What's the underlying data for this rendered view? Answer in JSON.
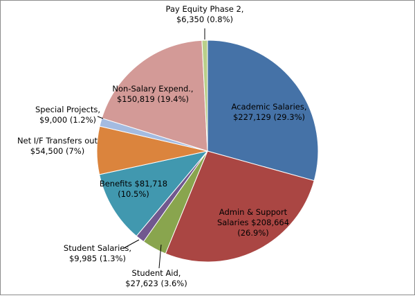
{
  "chart_data": {
    "type": "pie",
    "title": "",
    "start_angle_deg": 0,
    "direction": "clockwise",
    "legend": "none",
    "slices": [
      {
        "label": "Academic Salaries",
        "amount": "$227,129",
        "percent": "29.3%",
        "value": 29.3,
        "color": "#4572a7",
        "label_lines": [
          "Academic Salaries,",
          "$227,129 (29.3%)"
        ]
      },
      {
        "label": "Admin & Support Salaries",
        "amount": "$208,664",
        "percent": "26.9%",
        "value": 26.9,
        "color": "#aa4643",
        "label_lines": [
          "Admin & Support",
          "Salaries $208,664",
          "(26.9%)"
        ]
      },
      {
        "label": "Student Aid",
        "amount": "$27,623",
        "percent": "3.6%",
        "value": 3.6,
        "color": "#89a54e",
        "label_lines": [
          "Student Aid,",
          "$27,623 (3.6%)"
        ]
      },
      {
        "label": "Student Salaries",
        "amount": "$9,985",
        "percent": "1.3%",
        "value": 1.3,
        "color": "#71588f",
        "label_lines": [
          "Student Salaries,",
          "$9,985 (1.3%)"
        ]
      },
      {
        "label": "Benefits",
        "amount": "$81,718",
        "percent": "10.5%",
        "value": 10.5,
        "color": "#4198af",
        "label_lines": [
          "Benefits $81,718",
          "(10.5%)"
        ]
      },
      {
        "label": "Net I/F Transfers out",
        "amount": "$54,500",
        "percent": "7%",
        "value": 7,
        "color": "#db843d",
        "label_lines": [
          "Net  I/F Transfers out",
          "$54,500 (7%)"
        ]
      },
      {
        "label": "Special Projects",
        "amount": "$9,000",
        "percent": "1.2%",
        "value": 1.2,
        "color": "#a4bbe0",
        "label_lines": [
          "Special Projects,",
          "$9,000  (1.2%)"
        ]
      },
      {
        "label": "Non-Salary Expend.",
        "amount": "$150,819",
        "percent": "19.4%",
        "value": 19.4,
        "color": "#d39a97",
        "label_lines": [
          "Non-Salary Expend.,",
          "$150,819 (19.4%)"
        ]
      },
      {
        "label": "Pay Equity Phase 2",
        "amount": "$6,350",
        "percent": "0.8%",
        "value": 0.8,
        "color": "#b9cf8a",
        "label_lines": [
          "Pay Equity Phase 2,",
          "$6,350  (0.8%)"
        ]
      }
    ]
  }
}
